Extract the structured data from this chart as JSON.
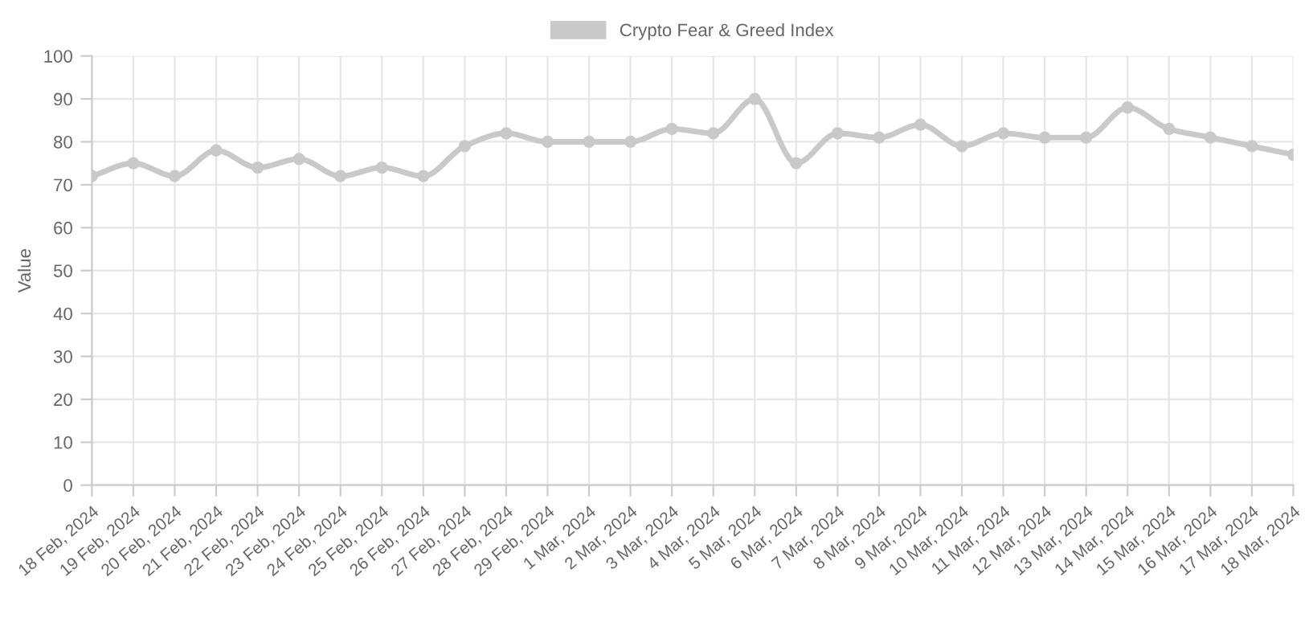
{
  "chart_data": {
    "type": "line",
    "ylabel": "Value",
    "categories": [
      "18 Feb, 2024",
      "19 Feb, 2024",
      "20 Feb, 2024",
      "21 Feb, 2024",
      "22 Feb, 2024",
      "23 Feb, 2024",
      "24 Feb, 2024",
      "25 Feb, 2024",
      "26 Feb, 2024",
      "27 Feb, 2024",
      "28 Feb, 2024",
      "29 Feb, 2024",
      "1 Mar, 2024",
      "2 Mar, 2024",
      "3 Mar, 2024",
      "4 Mar, 2024",
      "5 Mar, 2024",
      "6 Mar, 2024",
      "7 Mar, 2024",
      "8 Mar, 2024",
      "9 Mar, 2024",
      "10 Mar, 2024",
      "11 Mar, 2024",
      "12 Mar, 2024",
      "13 Mar, 2024",
      "14 Mar, 2024",
      "15 Mar, 2024",
      "16 Mar, 2024",
      "17 Mar, 2024",
      "18 Mar, 2024"
    ],
    "series": [
      {
        "name": "Crypto Fear & Greed Index",
        "color": "#c9c9c9",
        "values": [
          72,
          75,
          72,
          78,
          74,
          76,
          72,
          74,
          72,
          79,
          82,
          80,
          80,
          80,
          83,
          82,
          90,
          75,
          82,
          81,
          84,
          79,
          82,
          81,
          81,
          88,
          83,
          81,
          79,
          77
        ]
      }
    ],
    "ylim": [
      0,
      100
    ],
    "yticks": [
      0,
      10,
      20,
      30,
      40,
      50,
      60,
      70,
      80,
      90,
      100
    ],
    "grid": true,
    "legend": "top",
    "marker": "circle",
    "line_style": "solid"
  }
}
